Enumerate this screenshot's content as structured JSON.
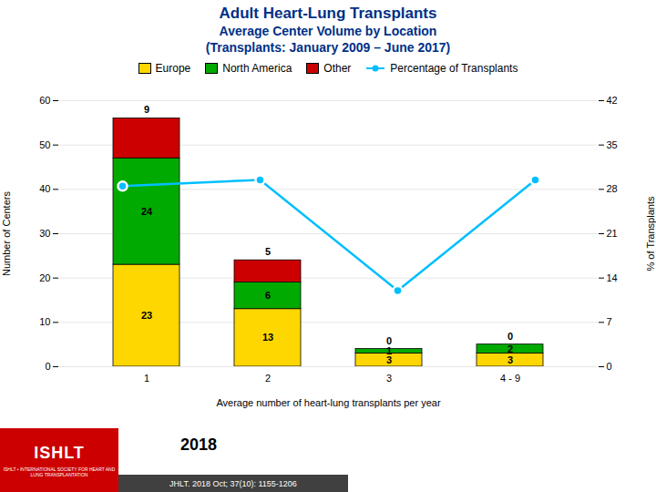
{
  "chart_data": {
    "type": "bar",
    "title": "Adult Heart-Lung Transplants",
    "subtitle": [
      "Average Center Volume by Location",
      "(Transplants: January 2009 – June 2017)"
    ],
    "xlabel": "Average number of heart-lung transplants per year",
    "ylabel": "Number of Centers",
    "y2label": "% of Transplants",
    "categories": [
      "1",
      "2",
      "3",
      "4 - 9"
    ],
    "series": [
      {
        "name": "Europe",
        "type": "bar",
        "color": "#FFD700",
        "values": [
          23,
          13,
          3,
          3
        ],
        "data_labels": true
      },
      {
        "name": "North America",
        "type": "bar",
        "color": "#00AA00",
        "values": [
          24,
          6,
          1,
          2
        ],
        "data_labels": true
      },
      {
        "name": "Other",
        "type": "bar",
        "color": "#CC0000",
        "values": [
          9,
          5,
          0,
          0
        ],
        "data_labels": true
      },
      {
        "name": "Percentage of Transplants",
        "type": "line",
        "axis": "y2",
        "color": "#00BFFF",
        "marker": "circle",
        "values": [
          28.5,
          29.5,
          12.0,
          29.5
        ]
      }
    ],
    "stacked": true,
    "ylim": [
      0,
      60
    ],
    "yticks": [
      0,
      10,
      20,
      30,
      40,
      50,
      60
    ],
    "y2lim": [
      0,
      42
    ],
    "y2ticks": [
      0,
      7,
      14,
      21,
      28,
      35,
      42
    ],
    "grid": true,
    "legend": "top",
    "annotations": [
      "ISHLT",
      "ISHLT • INTERNATIONAL SOCIETY FOR HEART AND LUNG TRANSPLANTATION",
      "2018",
      "JHLT. 2018 Oct; 37(10): 1155-1206"
    ]
  }
}
